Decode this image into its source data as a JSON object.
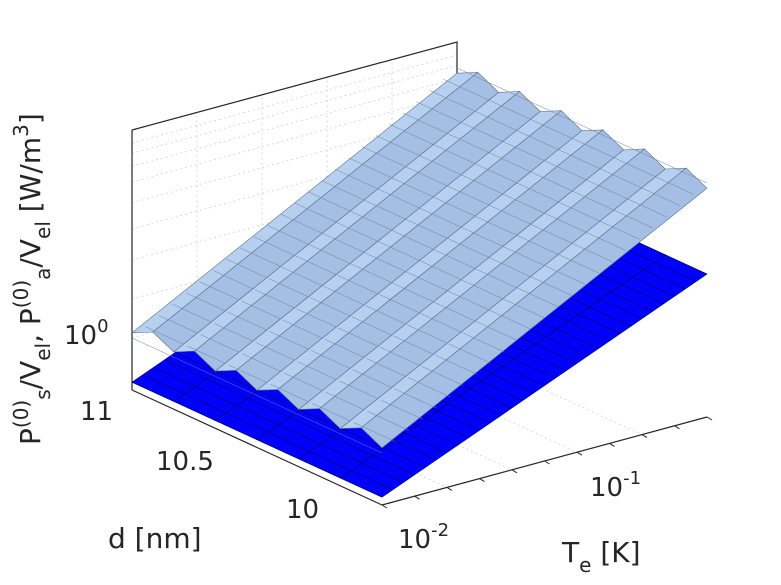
{
  "chart_data": {
    "type": "surface3d",
    "title": "",
    "xlabel_base": "T",
    "xlabel_sub": "e",
    "xlabel_unit": " [K]",
    "ylabel": "d [nm]",
    "zlabel_parts": [
      {
        "t": "P"
      },
      {
        "t": "(0)",
        "k": "sup"
      },
      {
        "t": "s",
        "k": "sub"
      },
      {
        "t": "/V"
      },
      {
        "t": "el",
        "k": "sub"
      },
      {
        "t": ", P"
      },
      {
        "t": "(0)",
        "k": "sup"
      },
      {
        "t": "a",
        "k": "sub"
      },
      {
        "t": "/V"
      },
      {
        "t": "el",
        "k": "sub"
      },
      {
        "t": " [W/m"
      },
      {
        "t": "3",
        "k": "sup"
      },
      {
        "t": "]"
      }
    ],
    "x_scale": "log",
    "z_scale": "log",
    "grid": true,
    "x_ticks": [
      {
        "base": "10",
        "exp": "-2"
      },
      {
        "base": "10",
        "exp": "-1"
      }
    ],
    "y_ticks": [
      "11",
      "10.5",
      "10"
    ],
    "z_ticks": [
      {
        "base": "10",
        "exp": "0"
      }
    ],
    "d_range": [
      10,
      11
    ],
    "series": [
      {
        "name": "",
        "color": "#0000ff"
      },
      {
        "name": "",
        "color": "#b8d0f0"
      }
    ]
  }
}
